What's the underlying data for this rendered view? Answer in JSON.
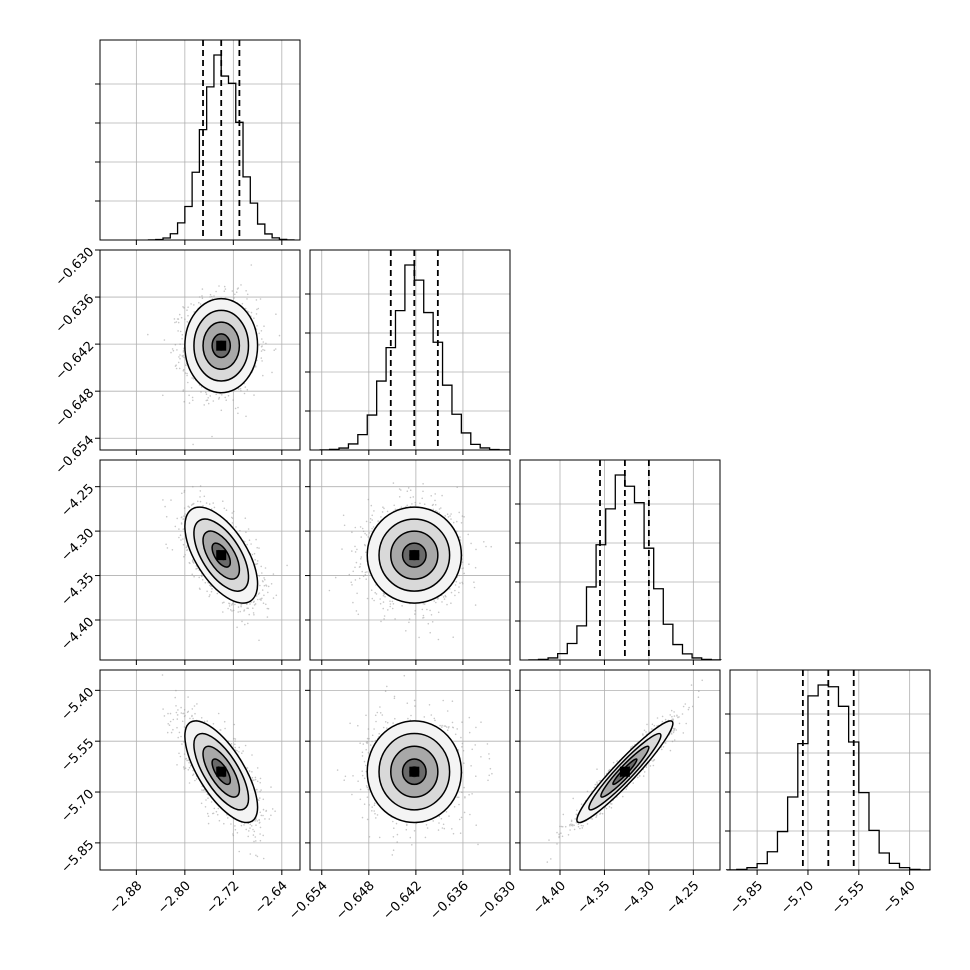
{
  "chart_data": {
    "type": "corner",
    "title": "",
    "grid": true,
    "quantile_markers": "dashed lines at 16th, 50th, 84th percentiles",
    "params": [
      {
        "center": -2.74,
        "sigma": 0.03,
        "range": [
          -2.94,
          -2.61
        ],
        "ticks": [
          "-2.88",
          "-2.80",
          "-2.72",
          "-2.64"
        ],
        "tick_values": [
          -2.88,
          -2.8,
          -2.72,
          -2.64
        ],
        "quantiles": [
          -2.77,
          -2.74,
          -2.71
        ]
      },
      {
        "center": -0.6422,
        "sigma": 0.003,
        "range": [
          -0.6555,
          -0.63
        ],
        "ticks": [
          "-0.654",
          "-0.648",
          "-0.642",
          "-0.636",
          "-0.630"
        ],
        "tick_values": [
          -0.654,
          -0.648,
          -0.642,
          -0.636,
          -0.63
        ],
        "quantiles": [
          -0.6452,
          -0.6422,
          -0.6392
        ]
      },
      {
        "center": -4.327,
        "sigma": 0.027,
        "range": [
          -4.445,
          -4.22
        ],
        "ticks": [
          "-4.40",
          "-4.35",
          "-4.30",
          "-4.25"
        ],
        "tick_values": [
          -4.4,
          -4.35,
          -4.3,
          -4.25
        ],
        "quantiles": [
          -4.355,
          -4.327,
          -4.3
        ]
      },
      {
        "center": -5.64,
        "sigma": 0.075,
        "range": [
          -5.93,
          -5.34
        ],
        "ticks": [
          "-5.85",
          "-5.70",
          "-5.55",
          "-5.40"
        ],
        "tick_values": [
          -5.85,
          -5.7,
          -5.55,
          -5.4
        ],
        "quantiles": [
          -5.715,
          -5.64,
          -5.565
        ]
      }
    ],
    "correlations": [
      {
        "pair": [
          1,
          0
        ],
        "rho": 0.0
      },
      {
        "pair": [
          2,
          0
        ],
        "rho": -0.6
      },
      {
        "pair": [
          2,
          1
        ],
        "rho": 0.0
      },
      {
        "pair": [
          3,
          0
        ],
        "rho": -0.7
      },
      {
        "pair": [
          3,
          1
        ],
        "rho": 0.0
      },
      {
        "pair": [
          3,
          2
        ],
        "rho": 0.95
      }
    ],
    "histogram_bins": 20,
    "contour_levels_sigma": [
      0.5,
      1.0,
      1.5,
      2.0
    ]
  }
}
